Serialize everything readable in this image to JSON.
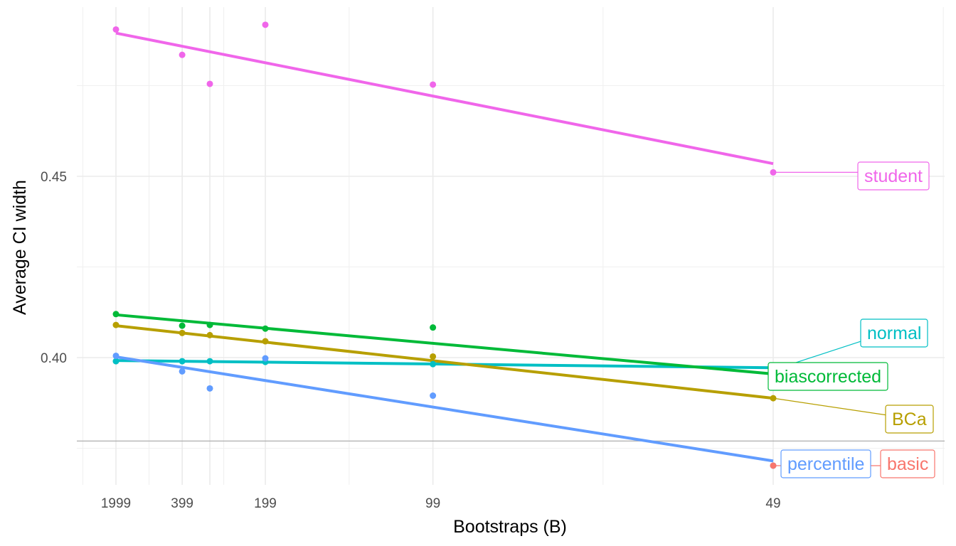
{
  "chart_data": {
    "type": "scatter",
    "title": "",
    "xlabel": "Bootstraps (B)",
    "ylabel": "Average CI width",
    "x_scale": "reciprocal",
    "x_ticks": [
      1999,
      399,
      199,
      99,
      49
    ],
    "x_tick_labels": [
      "1999",
      "399",
      "199",
      "99",
      "49"
    ],
    "y_ticks": [
      0.4,
      0.45
    ],
    "y_tick_labels": [
      "0.40",
      "0.45"
    ],
    "ylim": [
      0.365,
      0.4965
    ],
    "grid": true,
    "legend": "labels at line ends",
    "reference_line": 0.377,
    "series": [
      {
        "name": "student",
        "color": "#F066EA",
        "points": [
          [
            1999,
            0.4905
          ],
          [
            399,
            0.4835
          ],
          [
            299,
            0.4755
          ],
          [
            199,
            0.4918
          ],
          [
            99,
            0.4753
          ],
          [
            49,
            0.4511
          ]
        ],
        "trend": [
          [
            1999,
            0.4895
          ],
          [
            49,
            0.4535
          ]
        ]
      },
      {
        "name": "normal",
        "color": "#00BFC4",
        "points": [
          [
            1999,
            0.399
          ],
          [
            399,
            0.399
          ],
          [
            299,
            0.399
          ],
          [
            199,
            0.3988
          ],
          [
            99,
            0.3982
          ],
          [
            49,
            0.397
          ]
        ],
        "trend": [
          [
            1999,
            0.3992
          ],
          [
            49,
            0.3972
          ]
        ]
      },
      {
        "name": "biascorrected",
        "color": "#00BA38",
        "points": [
          [
            1999,
            0.412
          ],
          [
            399,
            0.4088
          ],
          [
            299,
            0.409
          ],
          [
            199,
            0.408
          ],
          [
            99,
            0.4083
          ],
          [
            49,
            0.3955
          ]
        ],
        "trend": [
          [
            1999,
            0.4118
          ],
          [
            49,
            0.3955
          ]
        ]
      },
      {
        "name": "BCa",
        "color": "#B79F00",
        "points": [
          [
            1999,
            0.409
          ],
          [
            399,
            0.4068
          ],
          [
            299,
            0.4062
          ],
          [
            199,
            0.4045
          ],
          [
            99,
            0.4003
          ],
          [
            49,
            0.3888
          ]
        ],
        "trend": [
          [
            1999,
            0.4088
          ],
          [
            49,
            0.3888
          ]
        ]
      },
      {
        "name": "percentile",
        "color": "#619CFF",
        "points": [
          [
            1999,
            0.4005
          ],
          [
            399,
            0.3962
          ],
          [
            299,
            0.3915
          ],
          [
            199,
            0.3998
          ],
          [
            99,
            0.3895
          ],
          [
            49,
            0.3702
          ]
        ],
        "trend": [
          [
            1999,
            0.4002
          ],
          [
            49,
            0.3715
          ]
        ]
      },
      {
        "name": "basic",
        "color": "#F8766D",
        "points": [
          [
            49,
            0.3702
          ]
        ],
        "trend": []
      }
    ]
  }
}
